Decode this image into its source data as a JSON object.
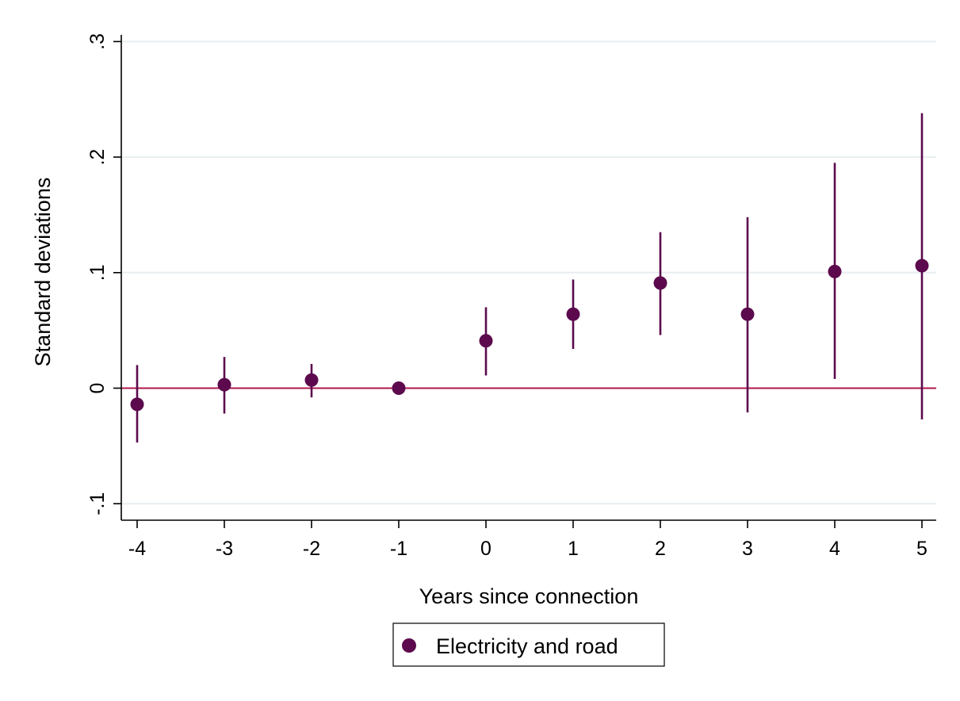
{
  "chart_data": {
    "type": "scatter",
    "title": "",
    "xlabel": "Years since connection",
    "ylabel": "Standard deviations",
    "xlim": [
      -4,
      5
    ],
    "ylim": [
      -0.1,
      0.3
    ],
    "x_ticks": [
      "-4",
      "-3",
      "-2",
      "-1",
      "0",
      "1",
      "2",
      "3",
      "4",
      "5"
    ],
    "y_ticks": [
      {
        "value": -0.1,
        "label": "-.1"
      },
      {
        "value": 0,
        "label": "0"
      },
      {
        "value": 0.1,
        "label": ".1"
      },
      {
        "value": 0.2,
        "label": ".2"
      },
      {
        "value": 0.3,
        "label": ".3"
      }
    ],
    "grid": true,
    "reference_line": {
      "y": 0,
      "color": "#b0184f"
    },
    "legend": {
      "position": "bottom",
      "entries": [
        "Electricity and road"
      ]
    },
    "series": [
      {
        "name": "Electricity and road",
        "color": "#5c0a4d",
        "x": [
          -4,
          -3,
          -2,
          -1,
          0,
          1,
          2,
          3,
          4,
          5
        ],
        "y": [
          -0.014,
          0.003,
          0.007,
          0.0,
          0.041,
          0.064,
          0.091,
          0.064,
          0.101,
          0.106
        ],
        "ci_low": [
          -0.047,
          -0.022,
          -0.008,
          0.0,
          0.011,
          0.034,
          0.046,
          -0.021,
          0.008,
          -0.027
        ],
        "ci_high": [
          0.02,
          0.027,
          0.021,
          0.0,
          0.07,
          0.094,
          0.135,
          0.148,
          0.195,
          0.238
        ]
      }
    ]
  }
}
